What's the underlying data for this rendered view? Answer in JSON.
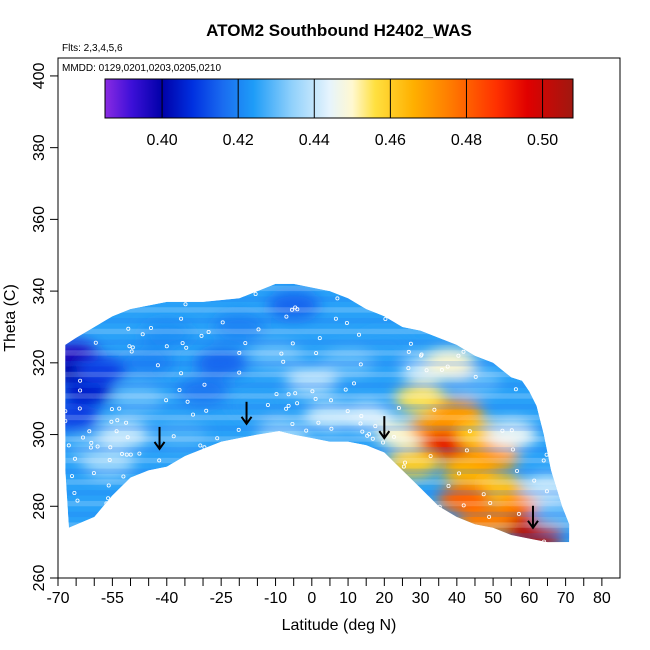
{
  "chart_data": {
    "type": "heatmap",
    "title": "ATOM2 Southbound H2402_WAS",
    "flights_text": "Flts: 2,3,4,5,6",
    "mmdd_text": "MMDD: 0129,0201,0203,0205,0210",
    "xlabel": "Latitude (deg N)",
    "ylabel": "Theta (C)",
    "xlim": [
      -70,
      85
    ],
    "ylim": [
      260,
      405
    ],
    "x_ticks_major": [
      -70,
      -55,
      -40,
      -25,
      -10,
      0,
      10,
      20,
      30,
      40,
      50,
      60,
      70,
      80
    ],
    "x_tick_labels": [
      "-70",
      "-55",
      "-40",
      "-25",
      "-10",
      "0",
      "10",
      "20",
      "30",
      "40",
      "50",
      "60",
      "70",
      "80"
    ],
    "x_ticks_minor": [
      -65,
      -60,
      -50,
      -45,
      -35,
      -30,
      -20,
      -15,
      -5,
      5,
      15,
      25,
      35,
      45,
      55,
      65,
      75
    ],
    "y_ticks": [
      260,
      280,
      300,
      320,
      340,
      360,
      380,
      400
    ],
    "y_tick_labels": [
      "260",
      "280",
      "300",
      "320",
      "340",
      "360",
      "380",
      "400"
    ],
    "colorbar": {
      "range": [
        0.385,
        0.508
      ],
      "ticks": [
        0.4,
        0.42,
        0.44,
        0.46,
        0.48,
        0.5
      ],
      "tick_labels": [
        "0.40",
        "0.42",
        "0.44",
        "0.46",
        "0.48",
        "0.50"
      ],
      "stops": [
        {
          "v": 0.385,
          "c": "#8a2be2"
        },
        {
          "v": 0.392,
          "c": "#3d10d8"
        },
        {
          "v": 0.4,
          "c": "#0000a8"
        },
        {
          "v": 0.408,
          "c": "#0030e0"
        },
        {
          "v": 0.416,
          "c": "#1a6cf0"
        },
        {
          "v": 0.424,
          "c": "#1e9cf8"
        },
        {
          "v": 0.434,
          "c": "#8fd0fb"
        },
        {
          "v": 0.444,
          "c": "#e6f4fd"
        },
        {
          "v": 0.45,
          "c": "#fff8d0"
        },
        {
          "v": 0.456,
          "c": "#ffe040"
        },
        {
          "v": 0.466,
          "c": "#ffb000"
        },
        {
          "v": 0.476,
          "c": "#ff7a00"
        },
        {
          "v": 0.488,
          "c": "#ff3000"
        },
        {
          "v": 0.496,
          "c": "#e00000"
        },
        {
          "v": 0.508,
          "c": "#a01810"
        }
      ]
    },
    "field_outline": {
      "bottom": [
        [
          -67,
          274
        ],
        [
          -60,
          277
        ],
        [
          -55,
          283
        ],
        [
          -50,
          288
        ],
        [
          -45,
          290
        ],
        [
          -40,
          291
        ],
        [
          -35,
          294
        ],
        [
          -30,
          296
        ],
        [
          -25,
          298
        ],
        [
          -20,
          299
        ],
        [
          -15,
          300
        ],
        [
          -9,
          301
        ],
        [
          -5,
          300
        ],
        [
          0,
          299
        ],
        [
          5,
          298
        ],
        [
          10,
          298
        ],
        [
          15,
          297
        ],
        [
          20,
          295
        ],
        [
          25,
          290
        ],
        [
          30,
          285
        ],
        [
          35,
          280
        ],
        [
          40,
          277
        ],
        [
          45,
          275
        ],
        [
          50,
          274
        ],
        [
          55,
          272
        ],
        [
          60,
          271
        ],
        [
          65,
          270
        ],
        [
          71,
          270
        ]
      ],
      "top": [
        [
          71,
          275
        ],
        [
          69,
          280
        ],
        [
          66,
          290
        ],
        [
          64,
          300
        ],
        [
          62,
          308
        ],
        [
          60,
          312
        ],
        [
          58,
          315
        ],
        [
          55,
          316
        ],
        [
          50,
          320
        ],
        [
          45,
          322
        ],
        [
          40,
          325
        ],
        [
          35,
          327
        ],
        [
          30,
          329
        ],
        [
          25,
          330
        ],
        [
          20,
          333
        ],
        [
          15,
          335
        ],
        [
          10,
          338
        ],
        [
          5,
          340
        ],
        [
          0,
          341
        ],
        [
          -5,
          342
        ],
        [
          -10,
          342
        ],
        [
          -15,
          340
        ],
        [
          -20,
          338
        ],
        [
          -30,
          337
        ],
        [
          -40,
          337
        ],
        [
          -50,
          335
        ],
        [
          -55,
          333
        ],
        [
          -60,
          330
        ],
        [
          -65,
          327
        ],
        [
          -68,
          325
        ],
        [
          -68,
          290
        ]
      ]
    },
    "field_samples": [
      {
        "lat": -66,
        "theta": 322,
        "v": 0.395
      },
      {
        "lat": -64,
        "theta": 318,
        "v": 0.4
      },
      {
        "lat": -62,
        "theta": 312,
        "v": 0.405
      },
      {
        "lat": -66,
        "theta": 305,
        "v": 0.41
      },
      {
        "lat": -60,
        "theta": 296,
        "v": 0.43
      },
      {
        "lat": -56,
        "theta": 292,
        "v": 0.435
      },
      {
        "lat": -52,
        "theta": 300,
        "v": 0.44
      },
      {
        "lat": -48,
        "theta": 310,
        "v": 0.43
      },
      {
        "lat": -45,
        "theta": 320,
        "v": 0.42
      },
      {
        "lat": -40,
        "theta": 328,
        "v": 0.422
      },
      {
        "lat": -36,
        "theta": 300,
        "v": 0.428
      },
      {
        "lat": -30,
        "theta": 312,
        "v": 0.418
      },
      {
        "lat": -25,
        "theta": 320,
        "v": 0.415
      },
      {
        "lat": -20,
        "theta": 330,
        "v": 0.42
      },
      {
        "lat": -15,
        "theta": 308,
        "v": 0.425
      },
      {
        "lat": -10,
        "theta": 322,
        "v": 0.43
      },
      {
        "lat": -5,
        "theta": 336,
        "v": 0.415
      },
      {
        "lat": 0,
        "theta": 315,
        "v": 0.438
      },
      {
        "lat": 5,
        "theta": 305,
        "v": 0.44
      },
      {
        "lat": 10,
        "theta": 320,
        "v": 0.43
      },
      {
        "lat": 15,
        "theta": 305,
        "v": 0.442
      },
      {
        "lat": 20,
        "theta": 325,
        "v": 0.425
      },
      {
        "lat": 25,
        "theta": 300,
        "v": 0.45
      },
      {
        "lat": 30,
        "theta": 310,
        "v": 0.455
      },
      {
        "lat": 34,
        "theta": 302,
        "v": 0.47
      },
      {
        "lat": 37,
        "theta": 297,
        "v": 0.495
      },
      {
        "lat": 40,
        "theta": 306,
        "v": 0.47
      },
      {
        "lat": 43,
        "theta": 290,
        "v": 0.465
      },
      {
        "lat": 47,
        "theta": 300,
        "v": 0.46
      },
      {
        "lat": 50,
        "theta": 294,
        "v": 0.47
      },
      {
        "lat": 52,
        "theta": 285,
        "v": 0.462
      },
      {
        "lat": 55,
        "theta": 300,
        "v": 0.445
      },
      {
        "lat": 57,
        "theta": 279,
        "v": 0.475
      },
      {
        "lat": 60,
        "theta": 274,
        "v": 0.5
      },
      {
        "lat": 62,
        "theta": 272,
        "v": 0.505
      },
      {
        "lat": 65,
        "theta": 285,
        "v": 0.44
      },
      {
        "lat": 68,
        "theta": 278,
        "v": 0.43
      },
      {
        "lat": 32,
        "theta": 318,
        "v": 0.44
      },
      {
        "lat": 45,
        "theta": 315,
        "v": 0.43
      },
      {
        "lat": 38,
        "theta": 320,
        "v": 0.45
      },
      {
        "lat": -58,
        "theta": 318,
        "v": 0.41
      },
      {
        "lat": -8,
        "theta": 300,
        "v": 0.435
      },
      {
        "lat": 28,
        "theta": 292,
        "v": 0.46
      },
      {
        "lat": 42,
        "theta": 282,
        "v": 0.48
      },
      {
        "lat": 48,
        "theta": 276,
        "v": 0.475
      }
    ],
    "arrows": [
      {
        "lat": -42,
        "theta": 296
      },
      {
        "lat": -18,
        "theta": 303
      },
      {
        "lat": 20,
        "theta": 299
      },
      {
        "lat": 61,
        "theta": 274
      }
    ]
  }
}
